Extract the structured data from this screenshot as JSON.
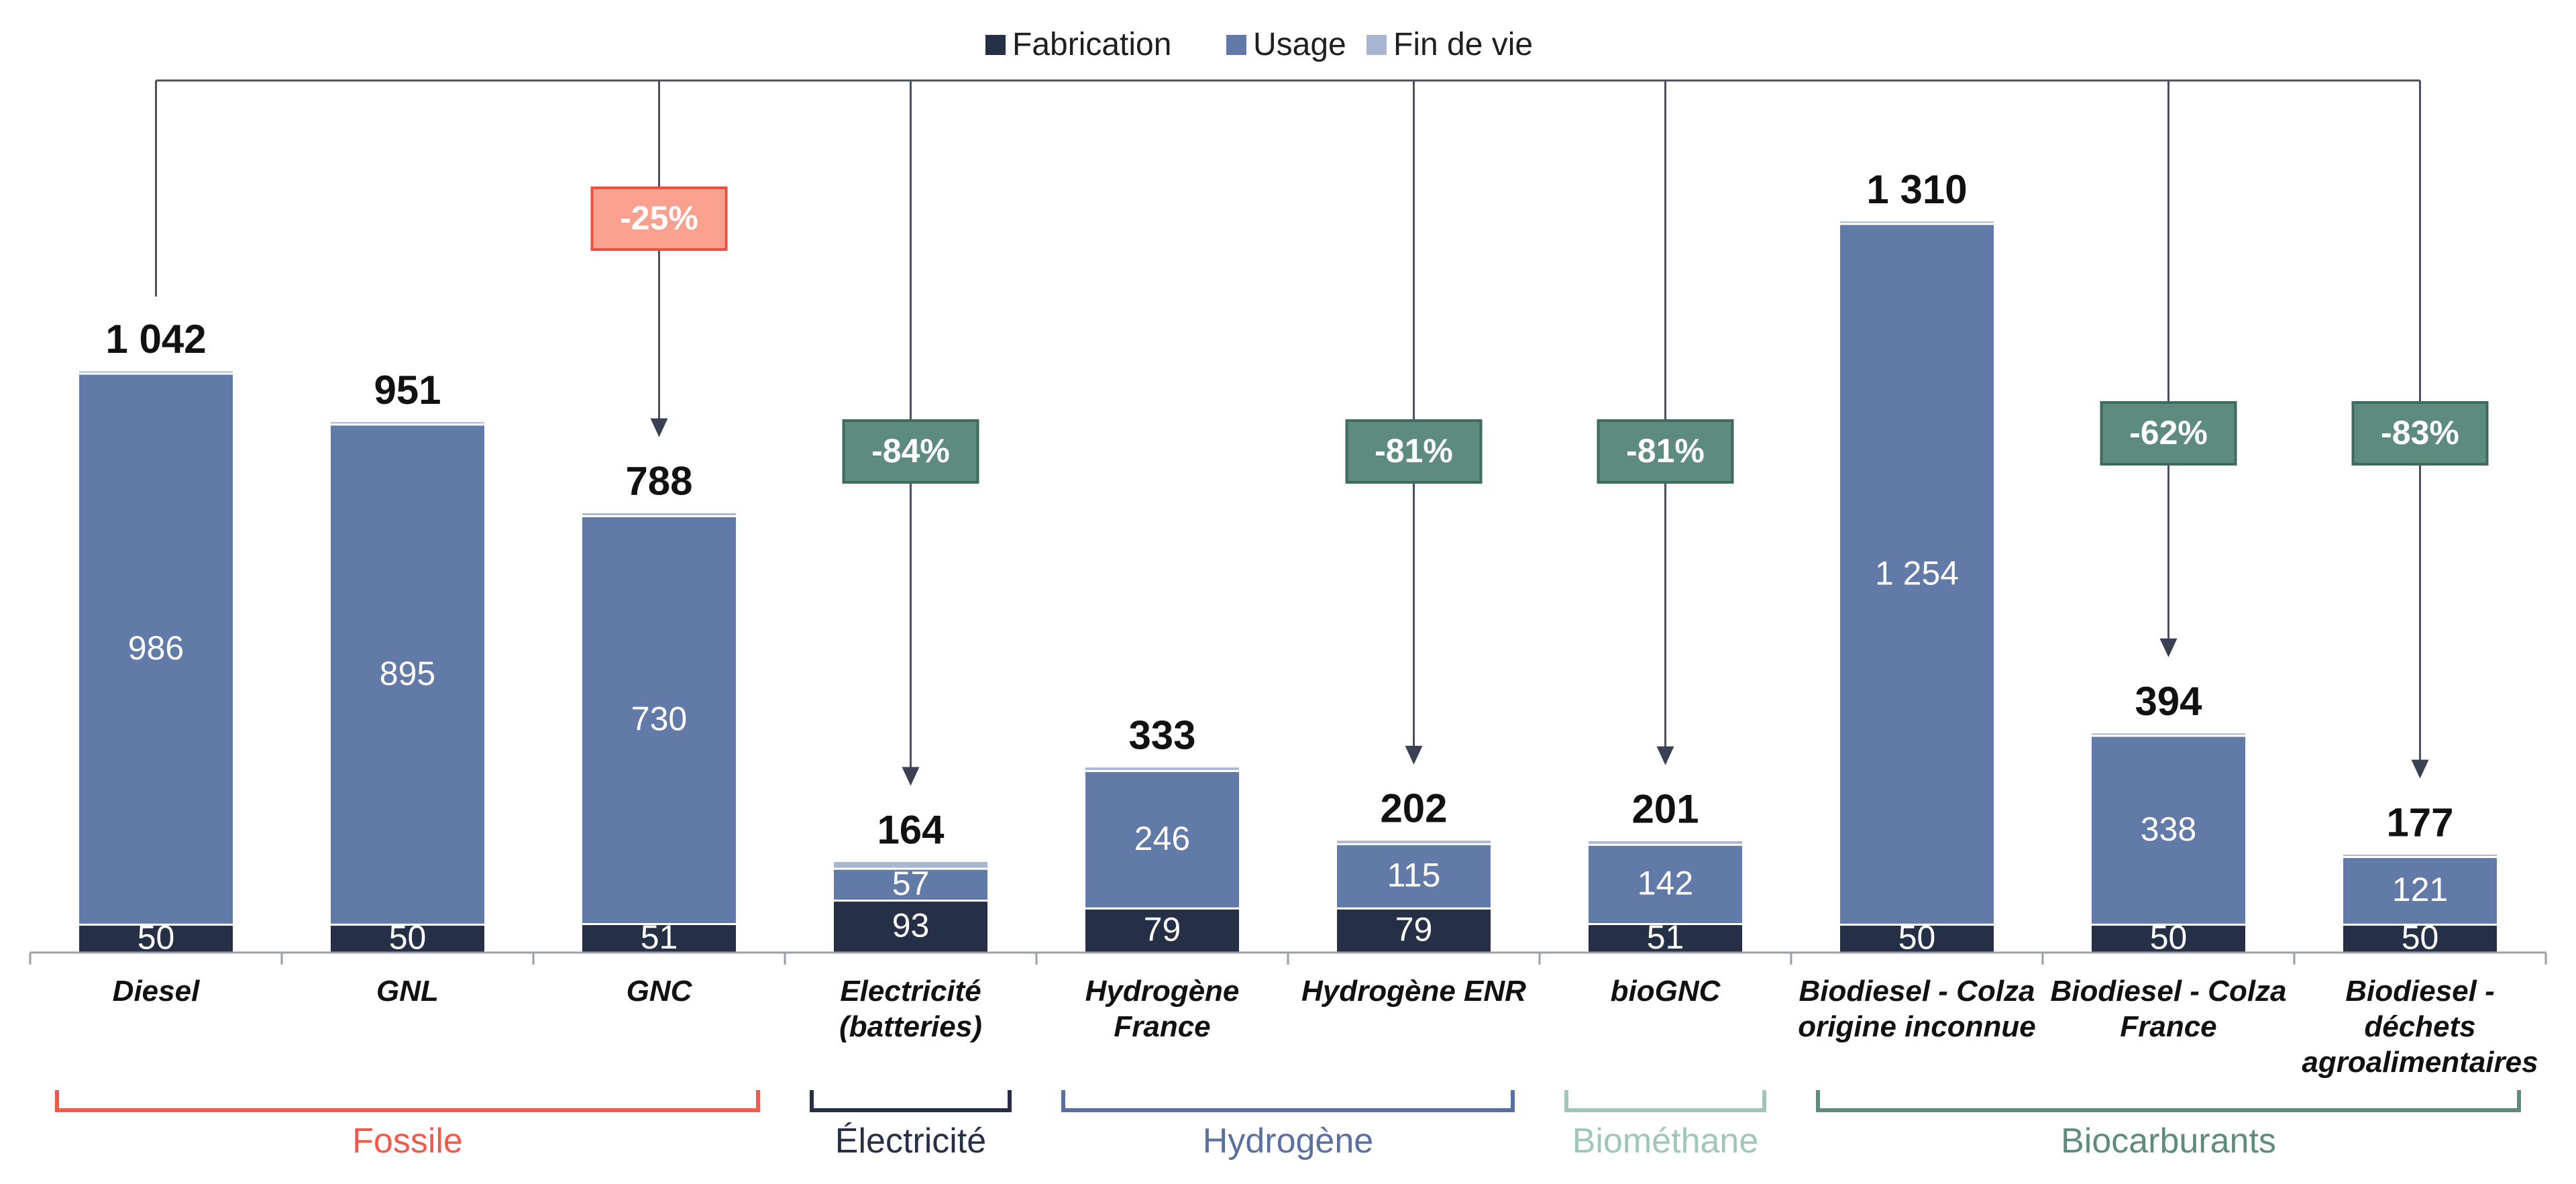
{
  "chart_data": {
    "type": "bar",
    "stacked": true,
    "title": "",
    "xlabel": "",
    "ylabel": "",
    "ylim": [
      0,
      1400
    ],
    "grid": false,
    "legend_position": "top-center",
    "categories": [
      [
        "Diesel"
      ],
      [
        "GNL"
      ],
      [
        "GNC"
      ],
      [
        "Electricité",
        "(batteries)"
      ],
      [
        "Hydrogène",
        "France"
      ],
      [
        "Hydrogène ENR"
      ],
      [
        "bioGNC"
      ],
      [
        "Biodiesel - Colza",
        "origine inconnue"
      ],
      [
        "Biodiesel - Colza",
        "France"
      ],
      [
        "Biodiesel -",
        "déchets",
        "agroalimentaires"
      ]
    ],
    "series": [
      {
        "name": "Fabrication",
        "color": "#253046",
        "values": [
          50,
          50,
          51,
          93,
          79,
          79,
          51,
          50,
          50,
          50
        ],
        "labels": [
          "50",
          "50",
          "51",
          "93",
          "79",
          "79",
          "51",
          "50",
          "50",
          "50"
        ]
      },
      {
        "name": "Usage",
        "color": "#627aa7",
        "values": [
          986,
          895,
          730,
          57,
          246,
          115,
          142,
          1254,
          338,
          121
        ],
        "labels": [
          "986",
          "895",
          "730",
          "57",
          "246",
          "115",
          "142",
          "1 254",
          "338",
          "121"
        ]
      },
      {
        "name": "Fin de vie",
        "color": "#a9b6d1",
        "values": [
          6,
          6,
          7,
          14,
          8,
          8,
          8,
          6,
          6,
          6
        ],
        "labels": []
      }
    ],
    "totals": [
      1042,
      951,
      788,
      164,
      333,
      202,
      201,
      1310,
      394,
      177
    ],
    "total_labels": [
      "1 042",
      "951",
      "788",
      "164",
      "333",
      "202",
      "201",
      "1 310",
      "394",
      "177"
    ],
    "reference_index": 0,
    "comparisons": [
      {
        "target": 2,
        "label": "-25%",
        "style": "fossil"
      },
      {
        "target": 3,
        "label": "-84%",
        "style": "low"
      },
      {
        "target": 5,
        "label": "-81%",
        "style": "low"
      },
      {
        "target": 6,
        "label": "-81%",
        "style": "low"
      },
      {
        "target": 8,
        "label": "-62%",
        "style": "low"
      },
      {
        "target": 9,
        "label": "-83%",
        "style": "low"
      }
    ],
    "groups": [
      {
        "label": "Fossile",
        "from": 0,
        "to": 2,
        "color": "#f2594b"
      },
      {
        "label": "Électricité",
        "from": 3,
        "to": 3,
        "color": "#253046"
      },
      {
        "label": "Hydrogène",
        "from": 4,
        "to": 5,
        "color": "#5a70a3"
      },
      {
        "label": "Biométhane",
        "from": 6,
        "to": 6,
        "color": "#9fc7b8"
      },
      {
        "label": "Biocarburants",
        "from": 7,
        "to": 9,
        "color": "#5d8b7d"
      }
    ],
    "badge_colors": {
      "fossil_fill": "#f9a08e",
      "fossil_stroke": "#ef4f3e",
      "low_fill": "#5d8b7d",
      "low_stroke": "#3f6b5e"
    }
  }
}
